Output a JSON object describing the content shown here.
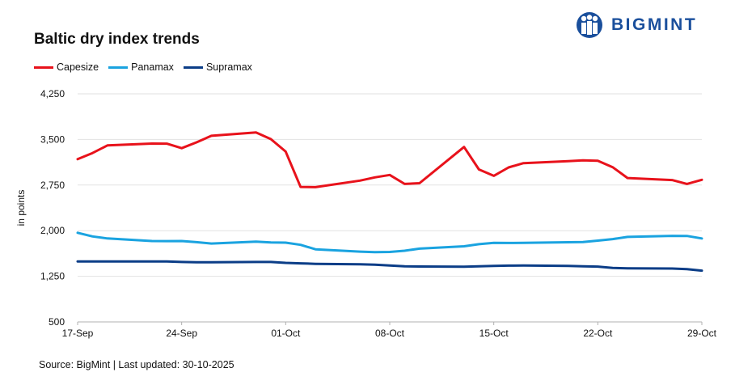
{
  "title": "Baltic dry index trends",
  "logo_text": "BIGMINT",
  "source": "Source: BigMint | Last updated: 30-10-2025",
  "chart_data": {
    "type": "line",
    "title": "Baltic dry index trends",
    "ylabel": "in points",
    "xlabel": "",
    "ylim": [
      500,
      4250
    ],
    "yticks": [
      500,
      1250,
      2000,
      2750,
      3500,
      4250
    ],
    "ytick_labels": [
      "500",
      "1,250",
      "2,000",
      "2,750",
      "3,500",
      "4,250"
    ],
    "xtick_labels": [
      "17-Sep",
      "24-Sep",
      "01-Oct",
      "08-Oct",
      "15-Oct",
      "22-Oct",
      "29-Oct"
    ],
    "xtick_days": [
      0,
      7,
      14,
      21,
      28,
      35,
      42
    ],
    "legend_position": "top-left",
    "grid": true,
    "x_dates": [
      "17-Sep",
      "18-Sep",
      "19-Sep",
      "22-Sep",
      "23-Sep",
      "24-Sep",
      "25-Sep",
      "26-Sep",
      "29-Sep",
      "30-Sep",
      "01-Oct",
      "02-Oct",
      "03-Oct",
      "06-Oct",
      "07-Oct",
      "08-Oct",
      "09-Oct",
      "10-Oct",
      "13-Oct",
      "14-Oct",
      "15-Oct",
      "16-Oct",
      "17-Oct",
      "20-Oct",
      "21-Oct",
      "22-Oct",
      "23-Oct",
      "24-Oct",
      "27-Oct",
      "28-Oct",
      "29-Oct"
    ],
    "x": [
      0,
      1,
      2,
      5,
      6,
      7,
      8,
      9,
      12,
      13,
      14,
      15,
      16,
      19,
      20,
      21,
      22,
      23,
      26,
      27,
      28,
      29,
      30,
      33,
      34,
      35,
      36,
      37,
      40,
      41,
      42
    ],
    "series": [
      {
        "name": "Capesize",
        "color": "#e8121b",
        "values": [
          3176,
          3276,
          3401,
          3432,
          3431,
          3356,
          3452,
          3560,
          3615,
          3505,
          3300,
          2720,
          2715,
          2823,
          2876,
          2916,
          2769,
          2780,
          3376,
          3007,
          2901,
          3040,
          3110,
          3142,
          3155,
          3150,
          3044,
          2866,
          2832,
          2768,
          2836
        ]
      },
      {
        "name": "Panamax",
        "color": "#1aa3e0",
        "values": [
          1966,
          1905,
          1873,
          1830,
          1829,
          1830,
          1811,
          1788,
          1821,
          1807,
          1803,
          1767,
          1694,
          1655,
          1648,
          1650,
          1670,
          1705,
          1744,
          1778,
          1799,
          1798,
          1800,
          1810,
          1813,
          1836,
          1862,
          1897,
          1915,
          1914,
          1872
        ]
      },
      {
        "name": "Supramax",
        "color": "#0b3d87",
        "values": [
          1495,
          1495,
          1493,
          1494,
          1493,
          1485,
          1482,
          1482,
          1485,
          1485,
          1471,
          1463,
          1455,
          1447,
          1442,
          1428,
          1415,
          1411,
          1408,
          1414,
          1420,
          1425,
          1427,
          1422,
          1415,
          1410,
          1387,
          1382,
          1378,
          1368,
          1343
        ]
      }
    ]
  }
}
